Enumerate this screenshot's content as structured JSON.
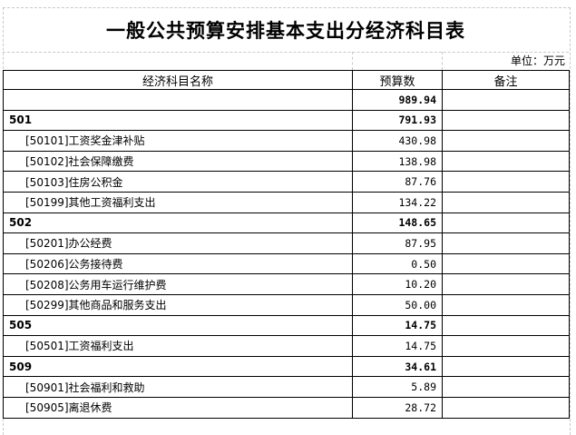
{
  "title": "一般公共预算安排基本支出分经济科目表",
  "unit": "单位：万元",
  "headers": [
    "经济科目名称",
    "预算数",
    "备注"
  ],
  "rows": [
    {
      "name": "",
      "value": "989.94",
      "note": "",
      "level": 0
    },
    {
      "name": "501",
      "value": "791.93",
      "note": "",
      "level": 0
    },
    {
      "name": "[50101]工资奖金津补贴",
      "value": "430.98",
      "note": "",
      "level": 1
    },
    {
      "name": "[50102]社会保障缴费",
      "value": "138.98",
      "note": "",
      "level": 1
    },
    {
      "name": "[50103]住房公积金",
      "value": "87.76",
      "note": "",
      "level": 1
    },
    {
      "name": "[50199]其他工资福利支出",
      "value": "134.22",
      "note": "",
      "level": 1
    },
    {
      "name": "502",
      "value": "148.65",
      "note": "",
      "level": 0
    },
    {
      "name": "[50201]办公经费",
      "value": "87.95",
      "note": "",
      "level": 1
    },
    {
      "name": "[50206]公务接待费",
      "value": "0.50",
      "note": "",
      "level": 1
    },
    {
      "name": "[50208]公务用车运行维护费",
      "value": "10.20",
      "note": "",
      "level": 1
    },
    {
      "name": "[50299]其他商品和服务支出",
      "value": "50.00",
      "note": "",
      "level": 1
    },
    {
      "name": "505",
      "value": "14.75",
      "note": "",
      "level": 0
    },
    {
      "name": "[50501]工资福利支出",
      "value": "14.75",
      "note": "",
      "level": 1
    },
    {
      "name": "509",
      "value": "34.61",
      "note": "",
      "level": 0
    },
    {
      "name": "[50901]社会福利和救助",
      "value": "5.89",
      "note": "",
      "level": 1
    },
    {
      "name": "[50905]离退休费",
      "value": "28.72",
      "note": "",
      "level": 1
    }
  ]
}
